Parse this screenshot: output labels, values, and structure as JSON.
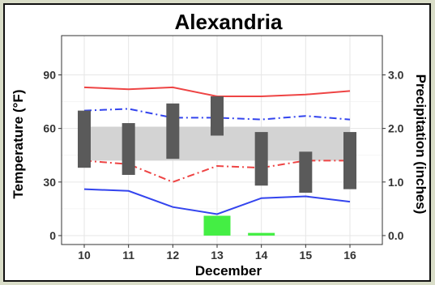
{
  "chart_data": {
    "type": "bar",
    "title": "Alexandria",
    "xlabel": "December",
    "ylabel": "Temperature (°F)",
    "y2label": "Precipitation (inches)",
    "categories": [
      "10",
      "11",
      "12",
      "13",
      "14",
      "15",
      "16"
    ],
    "ylim": [
      -5,
      112
    ],
    "yticks": [
      0,
      30,
      60,
      90
    ],
    "y2lim": [
      -0.167,
      3.733
    ],
    "y2ticks": [
      "0.0",
      "1.0",
      "2.0",
      "3.0"
    ],
    "y2tick_values": [
      0,
      1,
      2,
      3
    ],
    "normal_band": {
      "low": 42,
      "high": 61,
      "color": "#d3d3d3"
    },
    "temperature_range_bars": {
      "low": [
        38,
        34,
        43,
        56,
        28,
        24,
        26
      ],
      "high": [
        70,
        63,
        74,
        78,
        58,
        47,
        58
      ],
      "color": "#5a5a5a"
    },
    "precipitation": {
      "values": [
        0,
        0,
        0,
        0.37,
        0.05,
        0,
        0
      ],
      "color": "#44ee44"
    },
    "series": [
      {
        "values": [
          83,
          82,
          83,
          78,
          78,
          79,
          81
        ],
        "color": "#ee4444",
        "dash": "solid"
      },
      {
        "values": [
          70,
          71,
          66,
          66,
          65,
          67,
          65
        ],
        "color": "#3344ee",
        "dash": "dashdot"
      },
      {
        "values": [
          42,
          40,
          30,
          39,
          38,
          42,
          42
        ],
        "color": "#ee4444",
        "dash": "dashdot"
      },
      {
        "values": [
          26,
          25,
          16,
          12,
          21,
          22,
          19
        ],
        "color": "#3344ee",
        "dash": "solid"
      }
    ],
    "grid": true
  }
}
